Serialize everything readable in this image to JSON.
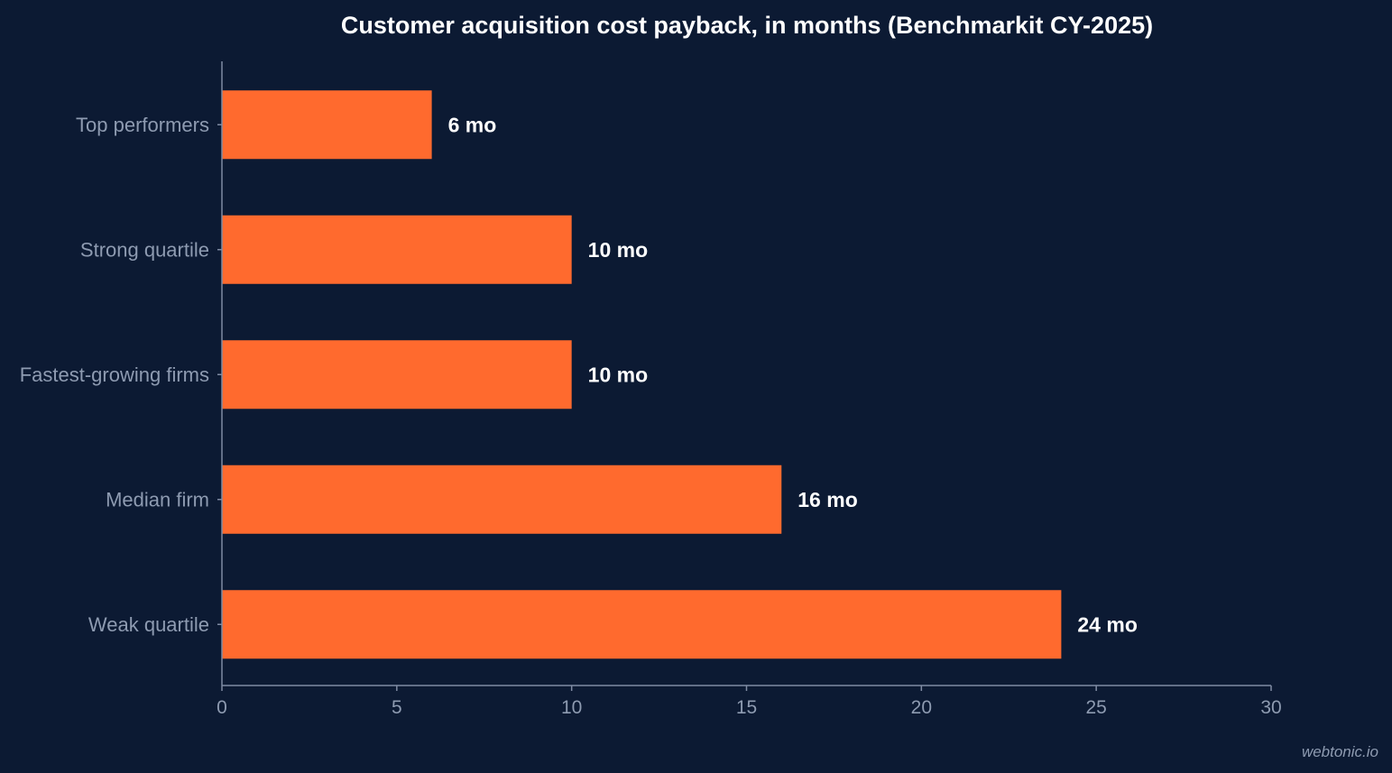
{
  "colors": {
    "background": "#0c1a33",
    "bar": "#ff6a2e",
    "axis": "#7f8ba3",
    "muted_text": "#8e9bb1",
    "title": "#ffffff"
  },
  "watermark": "webtonic.io",
  "chart_data": {
    "type": "bar",
    "orientation": "horizontal",
    "title": "Customer acquisition cost payback, in months (Benchmarkit CY-2025)",
    "xlabel": "",
    "ylabel": "",
    "categories": [
      "Top performers",
      "Strong quartile",
      "Fastest-growing firms",
      "Median firm",
      "Weak quartile"
    ],
    "values": [
      6,
      10,
      10,
      16,
      24
    ],
    "data_labels": [
      "6 mo",
      "10 mo",
      "10 mo",
      "16 mo",
      "24 mo"
    ],
    "xlim": [
      0,
      30
    ],
    "xticks": [
      0,
      5,
      10,
      15,
      20,
      25,
      30
    ],
    "xtick_labels": [
      "0",
      "5",
      "10",
      "15",
      "20",
      "25",
      "30"
    ],
    "grid": false,
    "legend": "none"
  }
}
